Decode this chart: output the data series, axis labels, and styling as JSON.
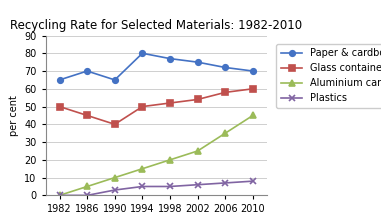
{
  "title": "Recycling Rate for Selected Materials: 1982-2010",
  "ylabel": "per cent",
  "years": [
    1982,
    1986,
    1990,
    1994,
    1998,
    2002,
    2006,
    2010
  ],
  "series": [
    {
      "label": "Paper & cardboard",
      "color": "#4472C4",
      "marker": "o",
      "values": [
        65,
        70,
        65,
        80,
        77,
        75,
        72,
        70
      ]
    },
    {
      "label": "Glass containers",
      "color": "#C0504D",
      "marker": "s",
      "values": [
        50,
        45,
        40,
        50,
        52,
        54,
        58,
        60
      ]
    },
    {
      "label": "Aluminium cans",
      "color": "#9BBB59",
      "marker": "^",
      "values": [
        0,
        5,
        10,
        15,
        20,
        25,
        35,
        45
      ]
    },
    {
      "label": "Plastics",
      "color": "#8064A2",
      "marker": "x",
      "values": [
        0,
        0,
        3,
        5,
        5,
        6,
        7,
        8
      ]
    }
  ],
  "ylim": [
    0,
    90
  ],
  "yticks": [
    0,
    10,
    20,
    30,
    40,
    50,
    60,
    70,
    80,
    90
  ],
  "xlim": [
    1980,
    2012
  ],
  "background_color": "#FFFFFF",
  "grid_color": "#C8C8C8",
  "title_fontsize": 8.5,
  "label_fontsize": 7,
  "tick_fontsize": 7,
  "legend_fontsize": 7
}
